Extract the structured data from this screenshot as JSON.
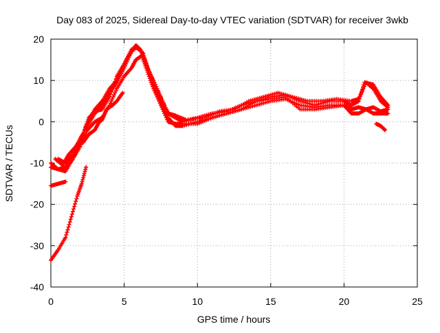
{
  "chart_data": {
    "type": "scatter",
    "title": "Day 083 of 2025, Sidereal Day-to-day VTEC variation (SDTVAR) for receiver 3wkb",
    "xlabel": "GPS time / hours",
    "ylabel": "SDTVAR / TECUs",
    "xlim": [
      0,
      25
    ],
    "ylim": [
      -40,
      20
    ],
    "x_ticks": [
      0,
      5,
      10,
      15,
      20,
      25
    ],
    "y_ticks": [
      -40,
      -30,
      -20,
      -10,
      0,
      10,
      20
    ],
    "x_tick_labels": [
      "0",
      "5",
      "10",
      "15",
      "20",
      "25"
    ],
    "y_tick_labels": [
      "-40",
      "-30",
      "-20",
      "-10",
      "0",
      "10",
      "20"
    ],
    "grid": true,
    "marker": "plus",
    "series_color": "#ff0000",
    "series": [
      {
        "name": "track-1",
        "points": [
          [
            0,
            -10
          ],
          [
            0.5,
            -11.5
          ],
          [
            1,
            -12
          ],
          [
            1.5,
            -9
          ],
          [
            2,
            -5
          ],
          [
            2.5,
            0
          ],
          [
            3,
            3
          ],
          [
            3.5,
            5
          ],
          [
            4,
            8
          ],
          [
            4.5,
            10
          ],
          [
            5,
            14
          ],
          [
            5.5,
            17
          ],
          [
            5.8,
            18.5
          ],
          [
            6.1,
            17.5
          ],
          [
            6.5,
            14
          ],
          [
            7,
            9
          ],
          [
            7.5,
            5
          ],
          [
            8,
            1
          ],
          [
            8.5,
            -1
          ],
          [
            9,
            -1
          ],
          [
            10,
            0
          ],
          [
            11,
            1
          ],
          [
            12,
            2
          ],
          [
            13,
            3
          ],
          [
            14,
            4
          ],
          [
            15,
            5
          ],
          [
            16,
            5.5
          ],
          [
            17,
            4
          ],
          [
            18,
            3.5
          ],
          [
            19,
            4
          ],
          [
            20,
            4
          ],
          [
            20.5,
            3
          ],
          [
            21,
            3.5
          ],
          [
            21.5,
            3
          ],
          [
            22,
            2
          ],
          [
            22.5,
            2
          ],
          [
            23,
            2
          ]
        ]
      },
      {
        "name": "track-2",
        "points": [
          [
            0.5,
            -9
          ],
          [
            1,
            -10
          ],
          [
            1.5,
            -8
          ],
          [
            2,
            -4
          ],
          [
            2.5,
            -1
          ],
          [
            3,
            2
          ],
          [
            3.5,
            4
          ],
          [
            4,
            7
          ],
          [
            4.5,
            9.5
          ],
          [
            5,
            13
          ],
          [
            5.5,
            17
          ],
          [
            5.8,
            18
          ],
          [
            6.2,
            17
          ],
          [
            6.6,
            13
          ],
          [
            7,
            10
          ],
          [
            7.5,
            6
          ],
          [
            8,
            2
          ],
          [
            8.5,
            1
          ],
          [
            9,
            0
          ],
          [
            10,
            1
          ],
          [
            11,
            2
          ],
          [
            12,
            2.5
          ],
          [
            13,
            4
          ],
          [
            14,
            5
          ],
          [
            15,
            6
          ],
          [
            16,
            6.5
          ],
          [
            17,
            5
          ],
          [
            18,
            4
          ],
          [
            19,
            5
          ],
          [
            20,
            5
          ],
          [
            20.5,
            4
          ],
          [
            21,
            5
          ],
          [
            21.4,
            9.5
          ],
          [
            22,
            9
          ],
          [
            22.5,
            6
          ],
          [
            23,
            4
          ]
        ]
      },
      {
        "name": "track-3",
        "points": [
          [
            0,
            -11
          ],
          [
            0.5,
            -11.5
          ],
          [
            1,
            -11
          ],
          [
            1.5,
            -9
          ],
          [
            2,
            -6
          ],
          [
            2.5,
            -2
          ],
          [
            3,
            0
          ],
          [
            3.5,
            1
          ],
          [
            4,
            4
          ],
          [
            4.5,
            8
          ],
          [
            5,
            11
          ],
          [
            5.5,
            13
          ],
          [
            5.8,
            15
          ],
          [
            6.2,
            16
          ],
          [
            6.6,
            12
          ],
          [
            7,
            8
          ],
          [
            7.5,
            4
          ],
          [
            8,
            0
          ],
          [
            8.5,
            -0.5
          ],
          [
            9,
            -0.5
          ],
          [
            10,
            -0.5
          ],
          [
            11,
            1
          ],
          [
            12,
            2
          ],
          [
            13,
            3
          ],
          [
            14,
            5
          ],
          [
            15,
            5.5
          ],
          [
            16,
            6
          ],
          [
            17,
            3
          ],
          [
            18,
            3
          ],
          [
            19,
            3.5
          ],
          [
            20,
            4
          ],
          [
            20.5,
            2
          ],
          [
            21,
            2
          ],
          [
            21.5,
            3
          ],
          [
            22,
            3.5
          ],
          [
            22.5,
            2.5
          ],
          [
            23,
            3
          ]
        ]
      },
      {
        "name": "track-4",
        "points": [
          [
            0.3,
            -9
          ],
          [
            0.8,
            -10.5
          ],
          [
            1.2,
            -8
          ],
          [
            1.7,
            -6
          ],
          [
            2.2,
            -3
          ],
          [
            2.6,
            1
          ],
          [
            3,
            2.5
          ],
          [
            3.5,
            3
          ],
          [
            4,
            6
          ],
          [
            4.5,
            11
          ],
          [
            5,
            14
          ],
          [
            5.5,
            17.5
          ],
          [
            5.9,
            18
          ],
          [
            6.3,
            16.5
          ],
          [
            6.7,
            12
          ],
          [
            7.2,
            8
          ],
          [
            7.6,
            5
          ],
          [
            8,
            2
          ],
          [
            8.5,
            1.5
          ],
          [
            9.2,
            0.5
          ],
          [
            10.5,
            1
          ],
          [
            11.5,
            2.5
          ],
          [
            12.5,
            3
          ],
          [
            13.5,
            5
          ],
          [
            14.5,
            6
          ],
          [
            15.5,
            7
          ],
          [
            16.5,
            6
          ],
          [
            17.5,
            5
          ],
          [
            18.5,
            5
          ],
          [
            19.5,
            5.5
          ],
          [
            20.5,
            5
          ],
          [
            21,
            5.5
          ],
          [
            21.5,
            9.5
          ],
          [
            22,
            8
          ],
          [
            22.5,
            5
          ],
          [
            23,
            3.5
          ]
        ]
      },
      {
        "name": "track-5",
        "points": [
          [
            2.2,
            -5
          ],
          [
            2.6,
            -3
          ],
          [
            3,
            -2
          ],
          [
            3.3,
            0
          ],
          [
            3.5,
            0.5
          ],
          [
            3.8,
            3
          ],
          [
            4.2,
            4
          ],
          [
            4.5,
            5
          ],
          [
            4.9,
            7
          ]
        ]
      },
      {
        "name": "track-6",
        "points": [
          [
            22.2,
            -0.5
          ],
          [
            22.5,
            -1
          ],
          [
            22.8,
            -2
          ]
        ]
      },
      {
        "name": "track-7",
        "points": [
          [
            0,
            -15.5
          ],
          [
            0.5,
            -15
          ],
          [
            1,
            -14.5
          ]
        ]
      },
      {
        "name": "track-8",
        "points": [
          [
            0,
            -33.5
          ],
          [
            0.5,
            -31
          ],
          [
            1,
            -28
          ],
          [
            1.4,
            -23
          ],
          [
            1.8,
            -18
          ],
          [
            2.1,
            -15
          ],
          [
            2.4,
            -11
          ]
        ]
      }
    ]
  }
}
